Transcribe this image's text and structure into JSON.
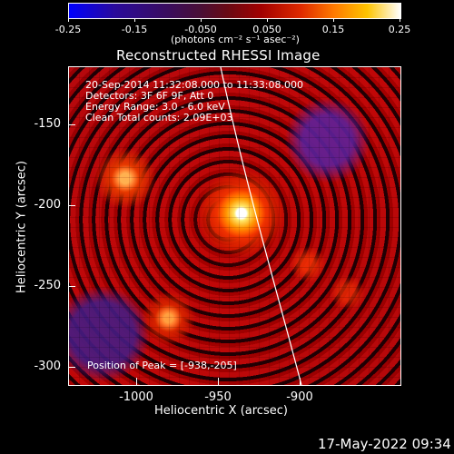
{
  "colorbar": {
    "tick_labels": [
      "-0.25",
      "-0.15",
      "-0.050",
      "0.050",
      "0.15",
      "0.25"
    ],
    "units": "(photons cm⁻² s⁻¹ asec⁻²)"
  },
  "plot": {
    "title": "Reconstructed RHESSI Image",
    "info_lines": [
      "20-Sep-2014 11:32:08.000 to 11:33:08.000",
      "Detectors: 3F 6F 9F, Att 0",
      "Energy Range: 3.0 - 6.0 keV",
      "Clean    Total counts: 2.09E+03"
    ],
    "peak_text": "Position of Peak = [-938,-205]",
    "xlabel": "Heliocentric X (arcsec)",
    "ylabel": "Heliocentric Y (arcsec)",
    "x_ticks": [
      "-1000",
      "-950",
      "-900"
    ],
    "y_ticks": [
      "-150",
      "-200",
      "-250",
      "-300"
    ],
    "footer_date": "17-May-2022 09:34"
  }
}
